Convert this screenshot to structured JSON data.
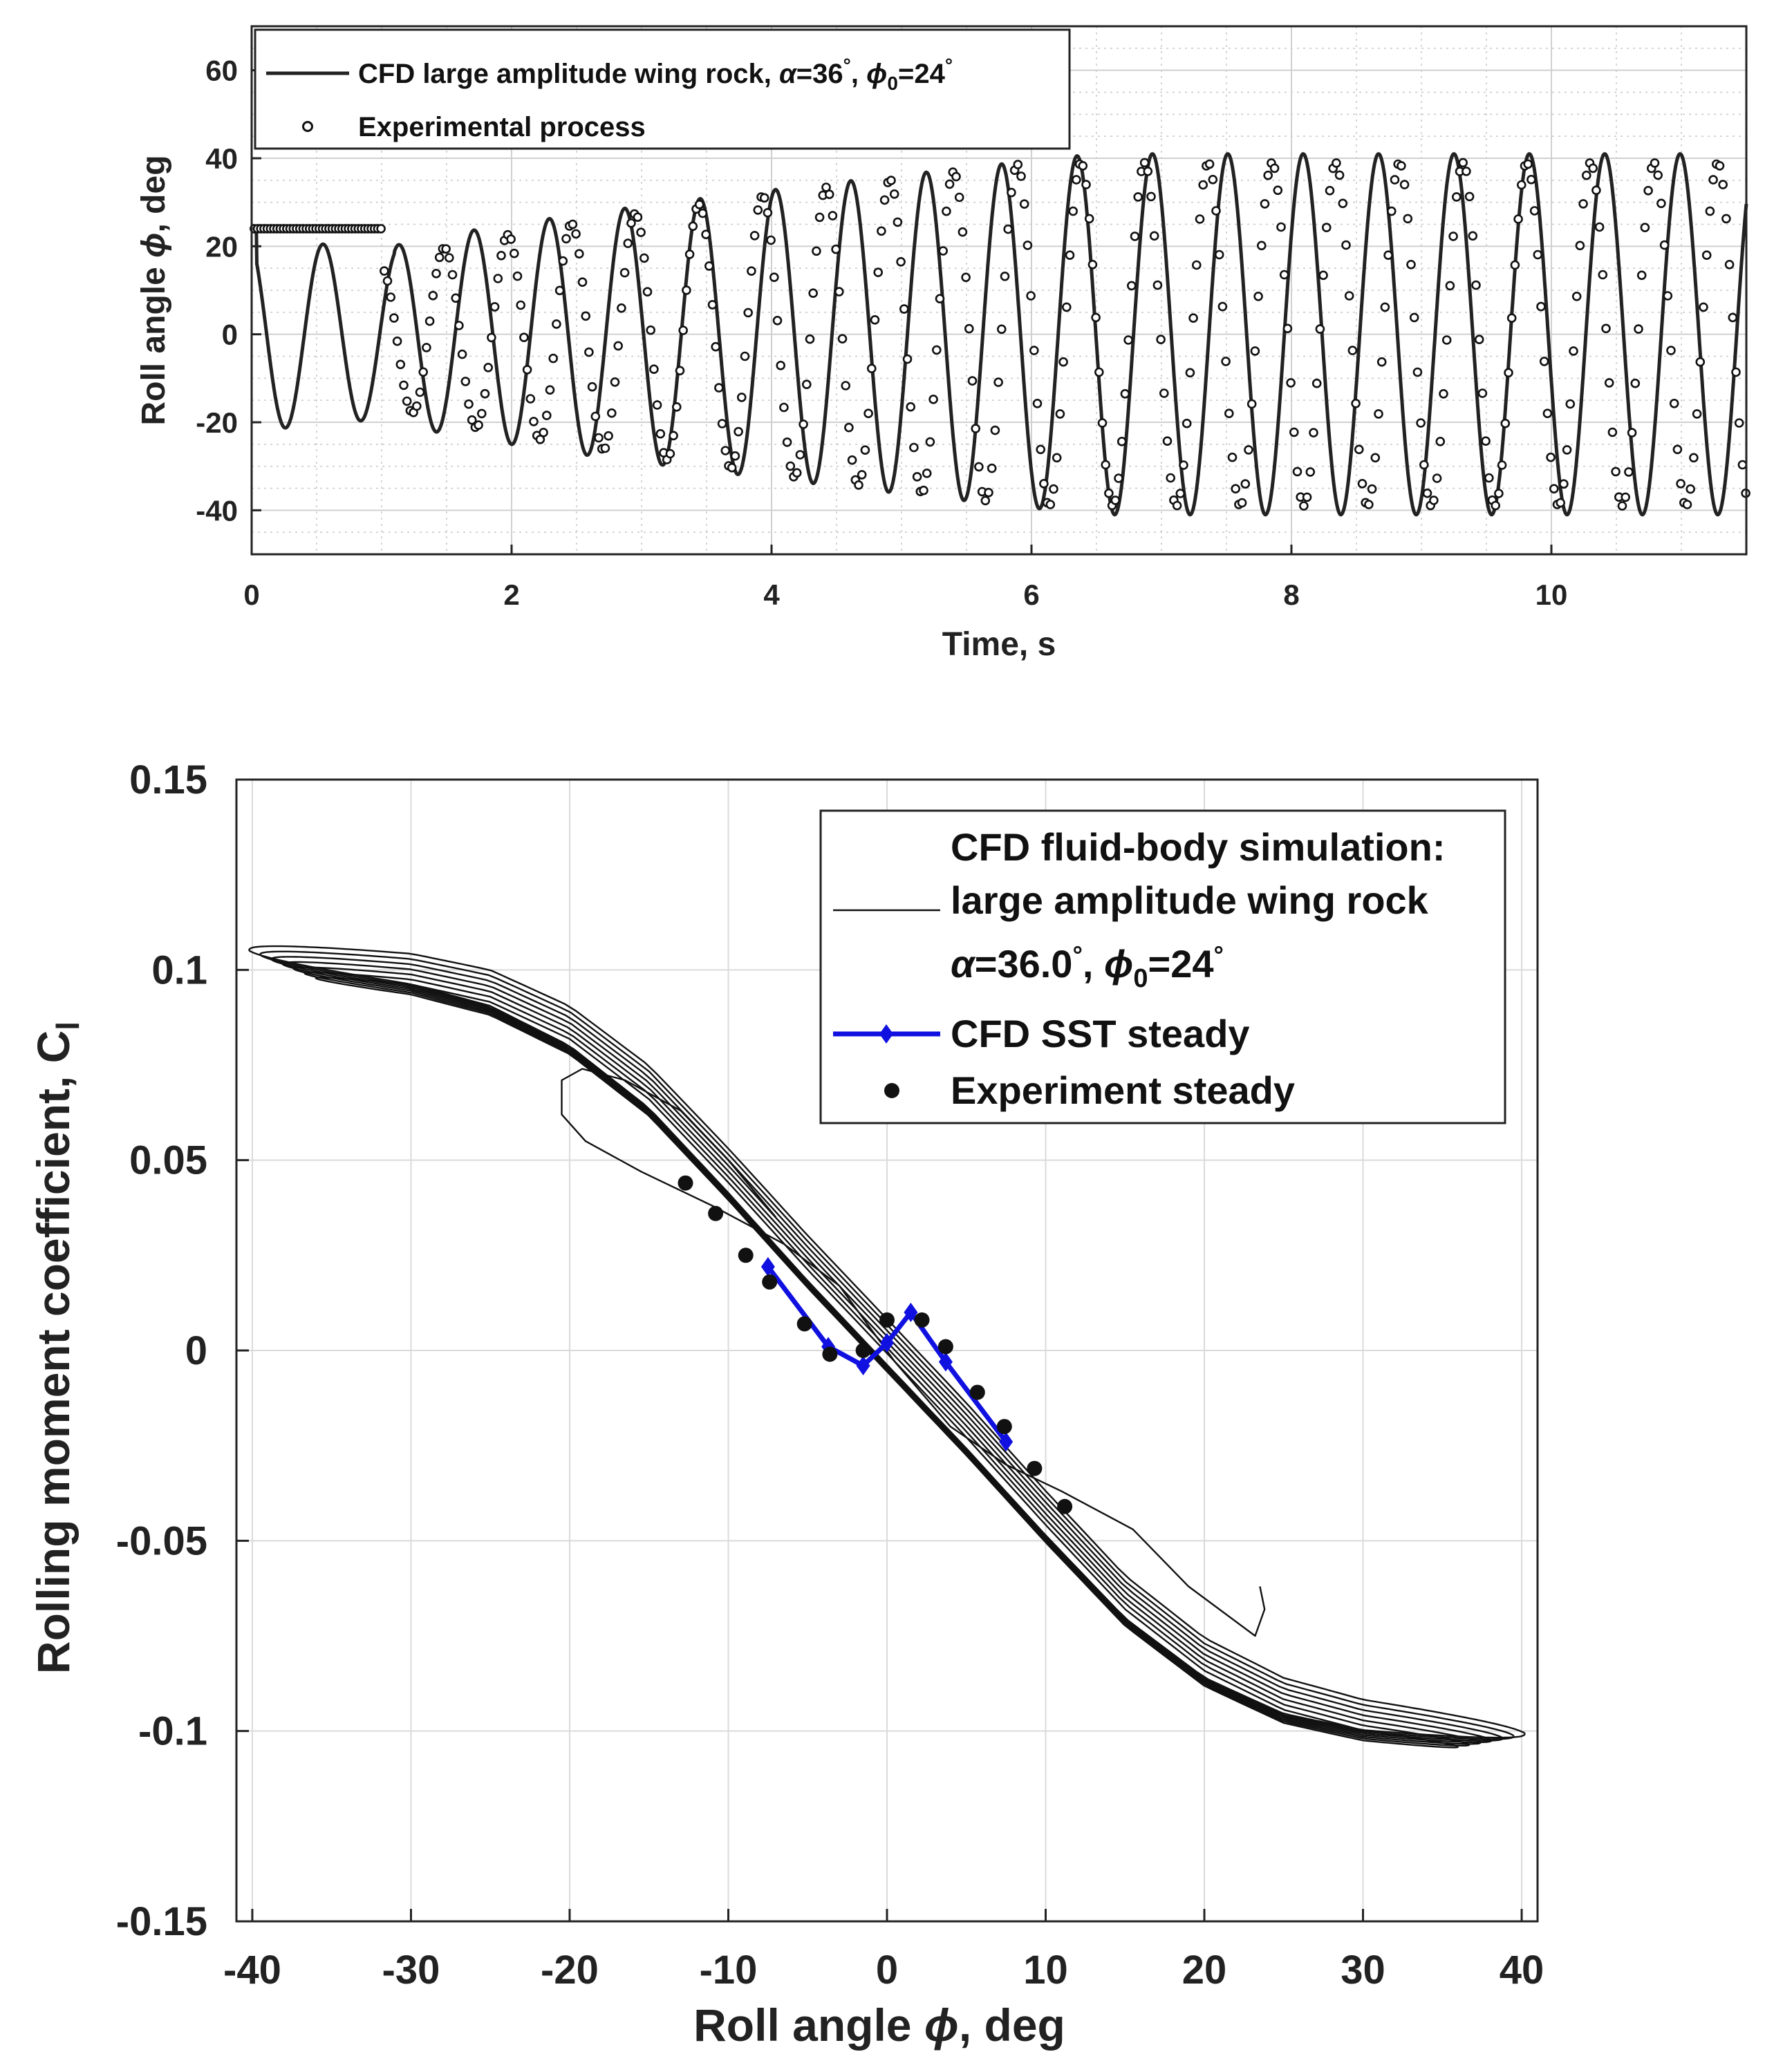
{
  "chart_data": [
    {
      "type": "line",
      "xlabel": "Time, s",
      "ylabel_prefix": "Roll angle ",
      "ylabel_symbol": "ϕ",
      "ylabel_suffix": ", deg",
      "xlim": [
        0,
        11.5
      ],
      "ylim": [
        -50,
        70
      ],
      "xticks": [
        0,
        2,
        4,
        6,
        8,
        10
      ],
      "yticks": [
        -40,
        -20,
        0,
        20,
        40,
        60
      ],
      "grid": true,
      "minor_grid": true,
      "legend_position": "top-left",
      "series": [
        {
          "name": "CFD large amplitude wing rock",
          "legend_text_main": "CFD large amplitude wing rock, ",
          "legend_alpha_symbol": "α",
          "legend_alpha_value": "=36",
          "legend_degree": "°",
          "legend_comma": ", ",
          "legend_phi_symbol": "ϕ",
          "legend_phi_sub": "0",
          "legend_phi_value": "=24",
          "style": "solid-line",
          "color": "#222222",
          "model": {
            "form": "damped-then-growing sinusoid",
            "x": [
              0,
              11.5
            ],
            "period_s": 0.58,
            "amplitude_start_deg": 20,
            "amplitude_end_deg": 41,
            "growth_window_s": [
              1.1,
              6.5
            ],
            "initial_value_deg": 24
          }
        },
        {
          "name": "Experimental process",
          "style": "open-circle-markers",
          "color": "#111111",
          "model": {
            "form": "hold then growing sinusoid",
            "hold_value_deg": 24,
            "hold_until_s": 1.0,
            "period_s": 0.49,
            "amplitude_start_deg": 15,
            "amplitude_end_deg": 39,
            "growth_window_s": [
              1.0,
              6.0
            ],
            "sample_step_s": 0.025
          }
        }
      ]
    },
    {
      "type": "line",
      "xlabel_prefix": "Roll angle ",
      "xlabel_symbol": "ϕ",
      "xlabel_suffix": ", deg",
      "ylabel_main": "Rolling moment coefficient, C",
      "ylabel_sub": "l",
      "xlim": [
        -41,
        41
      ],
      "ylim": [
        -0.15,
        0.15
      ],
      "xticks": [
        -40,
        -30,
        -20,
        -10,
        0,
        10,
        20,
        30,
        40
      ],
      "yticks": [
        -0.15,
        -0.1,
        -0.05,
        0,
        0.05,
        0.1,
        0.15
      ],
      "ytick_labels": [
        "-0.15",
        "-0.1",
        "-0.05",
        "0",
        "0.05",
        "0.1",
        "0.15"
      ],
      "grid": true,
      "legend_position": "top-right",
      "legend_lines": {
        "cfd_line1": "CFD fluid-body simulation:",
        "cfd_line2": "large amplitude wing rock",
        "cfd_alpha_symbol": "α",
        "cfd_alpha_value": "=36.0",
        "cfd_degree": "°",
        "cfd_comma": ", ",
        "cfd_phi_symbol": "ϕ",
        "cfd_phi_sub": "0",
        "cfd_phi_value": "=24",
        "sst_label": "CFD SST steady",
        "exp_label": "Experiment steady"
      },
      "series": [
        {
          "name": "CFD fluid-body simulation: large amplitude wing rock",
          "color": "#111111",
          "style": "thin-line hysteresis loops",
          "transient": {
            "x": [
              23.5,
              23.8,
              23.2,
              19,
              15.5,
              11,
              7.5,
              4,
              0.5,
              -3,
              -6.5,
              -11,
              -15.5,
              -19,
              -20.5,
              -20.5,
              -19.2,
              -16.5,
              -13,
              -10,
              -7
            ],
            "y": [
              -0.062,
              -0.068,
              -0.075,
              -0.062,
              -0.047,
              -0.037,
              -0.03,
              -0.02,
              -0.003,
              0.017,
              0.028,
              0.038,
              0.047,
              0.055,
              0.062,
              0.071,
              0.074,
              0.071,
              0.063,
              0.05,
              0.035
            ]
          },
          "settled_loop": {
            "amplitude_deg": 40,
            "center_y": [
              -40,
              -35,
              -30,
              -25,
              -20,
              -15,
              -10,
              -5,
              0,
              5,
              10,
              15,
              20,
              25,
              30,
              35,
              40
            ],
            "center_x_values": [
              0.103,
              0.1005,
              0.098,
              0.093,
              0.083,
              0.067,
              0.045,
              0.022,
              0.0,
              -0.022,
              -0.045,
              -0.067,
              -0.083,
              -0.093,
              -0.098,
              -0.1005,
              -0.103
            ],
            "loops": 7,
            "hysteresis_width": 0.004
          }
        },
        {
          "name": "CFD SST steady",
          "color": "#1010e0",
          "style": "line with diamond markers",
          "x": [
            -7.5,
            -3.7,
            -1.5,
            0,
            1.5,
            3.7,
            7.5
          ],
          "y": [
            0.022,
            0.001,
            -0.004,
            0.002,
            0.01,
            -0.003,
            -0.024
          ]
        },
        {
          "name": "Experiment steady",
          "color": "#111111",
          "style": "filled circle markers",
          "x": [
            -12.7,
            -10.8,
            -8.9,
            -7.4,
            -5.2,
            -3.6,
            -1.5,
            0.0,
            2.2,
            3.7,
            5.7,
            7.4,
            9.3,
            11.2
          ],
          "y": [
            0.044,
            0.036,
            0.025,
            0.018,
            0.007,
            -0.001,
            0.0,
            0.008,
            0.008,
            0.001,
            -0.011,
            -0.02,
            -0.031,
            -0.041
          ]
        }
      ]
    }
  ]
}
